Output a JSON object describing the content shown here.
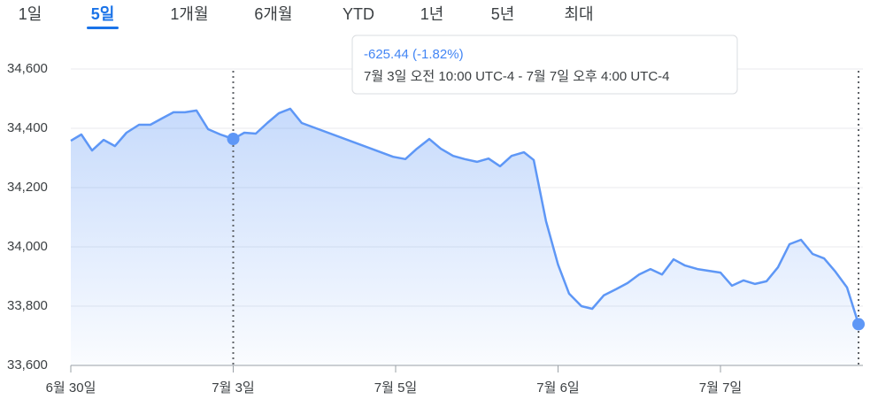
{
  "tabs": [
    "1일",
    "5일",
    "1개월",
    "6개월",
    "YTD",
    "1년",
    "5년",
    "최대"
  ],
  "active_tab": 1,
  "tooltip": {
    "change": "-625.44 (-1.82%)",
    "range": "7월 3일 오전 10:00 UTC-4 - 7월 7일 오후 4:00 UTC-4"
  },
  "chart_data": {
    "type": "line",
    "x": [
      0,
      0.065,
      0.131,
      0.202,
      0.272,
      0.343,
      0.42,
      0.49,
      0.561,
      0.632,
      0.703,
      0.774,
      0.845,
      0.921,
      1,
      1.068,
      1.139,
      1.21,
      1.281,
      1.351,
      1.422,
      1.984,
      2.06,
      2.131,
      2.207,
      2.278,
      2.354,
      2.425,
      2.501,
      2.572,
      2.643,
      2.714,
      2.79,
      2.85,
      2.926,
      3,
      3.068,
      3.144,
      3.21,
      3.281,
      3.357,
      3.428,
      3.499,
      3.569,
      3.64,
      3.711,
      3.782,
      3.858,
      3.929,
      4,
      4.071,
      4.142,
      4.213,
      4.283,
      4.354,
      4.425,
      4.496,
      4.567,
      4.638,
      4.708,
      4.779,
      4.85
    ],
    "series": [
      {
        "color": "#5e97f6",
        "values": [
          34358,
          34379,
          34325,
          34361,
          34340,
          34385,
          34412,
          34412,
          34433,
          34454,
          34454,
          34460,
          34397,
          34379,
          34364,
          34385,
          34382,
          34418,
          34451,
          34466,
          34418,
          34304,
          34296,
          34331,
          34364,
          34331,
          34307,
          34296,
          34287,
          34298,
          34272,
          34307,
          34319,
          34293,
          34087,
          33940,
          33842,
          33800,
          33791,
          33836,
          33857,
          33878,
          33907,
          33925,
          33907,
          33958,
          33937,
          33925,
          33919,
          33913,
          33869,
          33887,
          33875,
          33884,
          33931,
          34009,
          34024,
          33976,
          33961,
          33916,
          33863,
          33739
        ]
      }
    ],
    "xlim": [
      0,
      4.85
    ],
    "xticks": [
      {
        "value": 0,
        "label": "6월 30일"
      },
      {
        "value": 1,
        "label": "7월 3일"
      },
      {
        "value": 2,
        "label": "7월 5일"
      },
      {
        "value": 3,
        "label": "7월 6일"
      },
      {
        "value": 4,
        "label": "7월 7일"
      }
    ],
    "ylim": [
      33600,
      34600
    ],
    "yticks": [
      {
        "value": 33600,
        "label": "33,600"
      },
      {
        "value": 33800,
        "label": "33,800"
      },
      {
        "value": 34000,
        "label": "34,000"
      },
      {
        "value": 34200,
        "label": "34,200"
      },
      {
        "value": 34400,
        "label": "34,400"
      },
      {
        "value": 34600,
        "label": "34,600"
      }
    ],
    "grid": true
  }
}
